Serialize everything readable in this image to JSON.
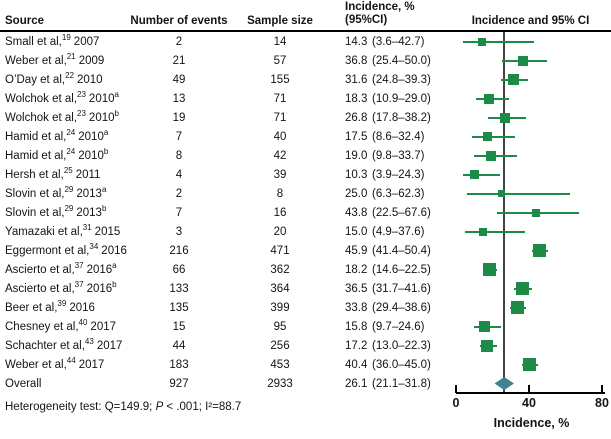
{
  "chart_data": {
    "type": "forest",
    "plot_title": "Incidence and 95% CI",
    "xlabel": "Incidence, %",
    "xlim": [
      0,
      80
    ],
    "xticks": [
      0,
      40,
      80
    ],
    "reference_line": 26.1,
    "legend_position": "none",
    "grid": false,
    "colors": {
      "marker_green": "#1e8a47",
      "diamond_teal": "#3f8290",
      "axis_black": "#000000",
      "reference_gray": "#444444"
    },
    "columns": {
      "source": "Source",
      "events": "Number of events",
      "sample": "Sample size",
      "incidence_line1": "Incidence, %",
      "incidence_line2": "(95%CI)"
    },
    "rows": [
      {
        "source": "Small et al,",
        "ref": "19",
        "year": "2007",
        "sub": "",
        "events": "2",
        "sample": "14",
        "inc": "14.3",
        "ci": "(3.6–42.7)",
        "est": 14.3,
        "lo": 3.6,
        "hi": 42.7,
        "overall": false
      },
      {
        "source": "Weber et al,",
        "ref": "21",
        "year": "2009",
        "sub": "",
        "events": "21",
        "sample": "57",
        "inc": "36.8",
        "ci": "(25.4–50.0)",
        "est": 36.8,
        "lo": 25.4,
        "hi": 50.0,
        "overall": false
      },
      {
        "source": "O’Day et al,",
        "ref": "22",
        "year": "2010",
        "sub": "",
        "events": "49",
        "sample": "155",
        "inc": "31.6",
        "ci": "(24.8–39.3)",
        "est": 31.6,
        "lo": 24.8,
        "hi": 39.3,
        "overall": false
      },
      {
        "source": "Wolchok et al,",
        "ref": "23",
        "year": "2010",
        "sub": "a",
        "events": "13",
        "sample": "71",
        "inc": "18.3",
        "ci": "(10.9–29.0)",
        "est": 18.3,
        "lo": 10.9,
        "hi": 29.0,
        "overall": false
      },
      {
        "source": "Wolchok et al,",
        "ref": "23",
        "year": "2010",
        "sub": "b",
        "events": "19",
        "sample": "71",
        "inc": "26.8",
        "ci": "(17.8–38.2)",
        "est": 26.8,
        "lo": 17.8,
        "hi": 38.2,
        "overall": false
      },
      {
        "source": "Hamid et al,",
        "ref": "24",
        "year": "2010",
        "sub": "a",
        "events": "7",
        "sample": "40",
        "inc": "17.5",
        "ci": "(8.6–32.4)",
        "est": 17.5,
        "lo": 8.6,
        "hi": 32.4,
        "overall": false
      },
      {
        "source": "Hamid et al,",
        "ref": "24",
        "year": "2010",
        "sub": "b",
        "events": "8",
        "sample": "42",
        "inc": "19.0",
        "ci": "(9.8–33.7)",
        "est": 19.0,
        "lo": 9.8,
        "hi": 33.7,
        "overall": false
      },
      {
        "source": "Hersh et al,",
        "ref": "25",
        "year": "2011",
        "sub": "",
        "events": "4",
        "sample": "39",
        "inc": "10.3",
        "ci": "(3.9–24.3)",
        "est": 10.3,
        "lo": 3.9,
        "hi": 24.3,
        "overall": false
      },
      {
        "source": "Slovin et al,",
        "ref": "29",
        "year": "2013",
        "sub": "a",
        "events": "2",
        "sample": "8",
        "inc": "25.0",
        "ci": "(6.3–62.3)",
        "est": 25.0,
        "lo": 6.3,
        "hi": 62.3,
        "overall": false
      },
      {
        "source": "Slovin et al,",
        "ref": "29",
        "year": "2013",
        "sub": "b",
        "events": "7",
        "sample": "16",
        "inc": "43.8",
        "ci": "(22.5–67.6)",
        "est": 43.8,
        "lo": 22.5,
        "hi": 67.6,
        "overall": false
      },
      {
        "source": "Yamazaki et al,",
        "ref": "31",
        "year": "2015",
        "sub": "",
        "events": "3",
        "sample": "20",
        "inc": "15.0",
        "ci": "(4.9–37.6)",
        "est": 15.0,
        "lo": 4.9,
        "hi": 37.6,
        "overall": false
      },
      {
        "source": "Eggermont et al,",
        "ref": "34",
        "year": "2016",
        "sub": "",
        "events": "216",
        "sample": "471",
        "inc": "45.9",
        "ci": "(41.4–50.4)",
        "est": 45.9,
        "lo": 41.4,
        "hi": 50.4,
        "overall": false
      },
      {
        "source": "Ascierto et al,",
        "ref": "37",
        "year": "2016",
        "sub": "a",
        "events": "66",
        "sample": "362",
        "inc": "18.2",
        "ci": "(14.6–22.5)",
        "est": 18.2,
        "lo": 14.6,
        "hi": 22.5,
        "overall": false
      },
      {
        "source": "Ascierto et al,",
        "ref": "37",
        "year": "2016",
        "sub": "b",
        "events": "133",
        "sample": "364",
        "inc": "36.5",
        "ci": "(31.7–41.6)",
        "est": 36.5,
        "lo": 31.7,
        "hi": 41.6,
        "overall": false
      },
      {
        "source": "Beer et al,",
        "ref": "39",
        "year": "2016",
        "sub": "",
        "events": "135",
        "sample": "399",
        "inc": "33.8",
        "ci": "(29.4–38.6)",
        "est": 33.8,
        "lo": 29.4,
        "hi": 38.6,
        "overall": false
      },
      {
        "source": "Chesney et al,",
        "ref": "40",
        "year": "2017",
        "sub": "",
        "events": "15",
        "sample": "95",
        "inc": "15.8",
        "ci": "(9.7–24.6)",
        "est": 15.8,
        "lo": 9.7,
        "hi": 24.6,
        "overall": false
      },
      {
        "source": "Schachter et al,",
        "ref": "43",
        "year": "2017",
        "sub": "",
        "events": "44",
        "sample": "256",
        "inc": "17.2",
        "ci": "(13.0–22.3)",
        "est": 17.2,
        "lo": 13.0,
        "hi": 22.3,
        "overall": false
      },
      {
        "source": "Weber et al,",
        "ref": "44",
        "year": "2017",
        "sub": "",
        "events": "183",
        "sample": "453",
        "inc": "40.4",
        "ci": "(36.0–45.0)",
        "est": 40.4,
        "lo": 36.0,
        "hi": 45.0,
        "overall": false
      },
      {
        "source": "Overall",
        "ref": "",
        "year": "",
        "sub": "",
        "events": "927",
        "sample": "2933",
        "inc": "26.1",
        "ci": "(21.1–31.8)",
        "est": 26.1,
        "lo": 21.1,
        "hi": 31.8,
        "overall": true
      }
    ],
    "footer": {
      "heterogeneity_prefix": "Heterogeneity test: Q=149.9; ",
      "p_symbol": "P",
      "heterogeneity_suffix": " < .001; I²=88.7"
    }
  }
}
